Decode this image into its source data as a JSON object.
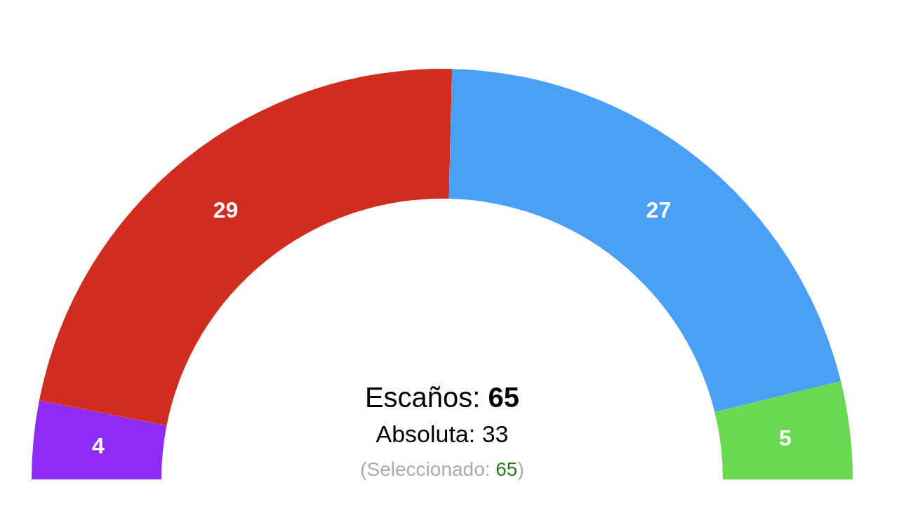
{
  "chart_data": {
    "type": "donut",
    "categories": [
      null,
      null,
      null,
      null
    ],
    "values": [
      4,
      29,
      27,
      5
    ],
    "colors": [
      "#8e2cf5",
      "#d02c1f",
      "#4a9ff7",
      "#6ad952"
    ],
    "data_labels": true,
    "annotations": [
      "Escaños: 65",
      "Absoluta: 33",
      "(Seleccionado: 65)"
    ]
  }
}
